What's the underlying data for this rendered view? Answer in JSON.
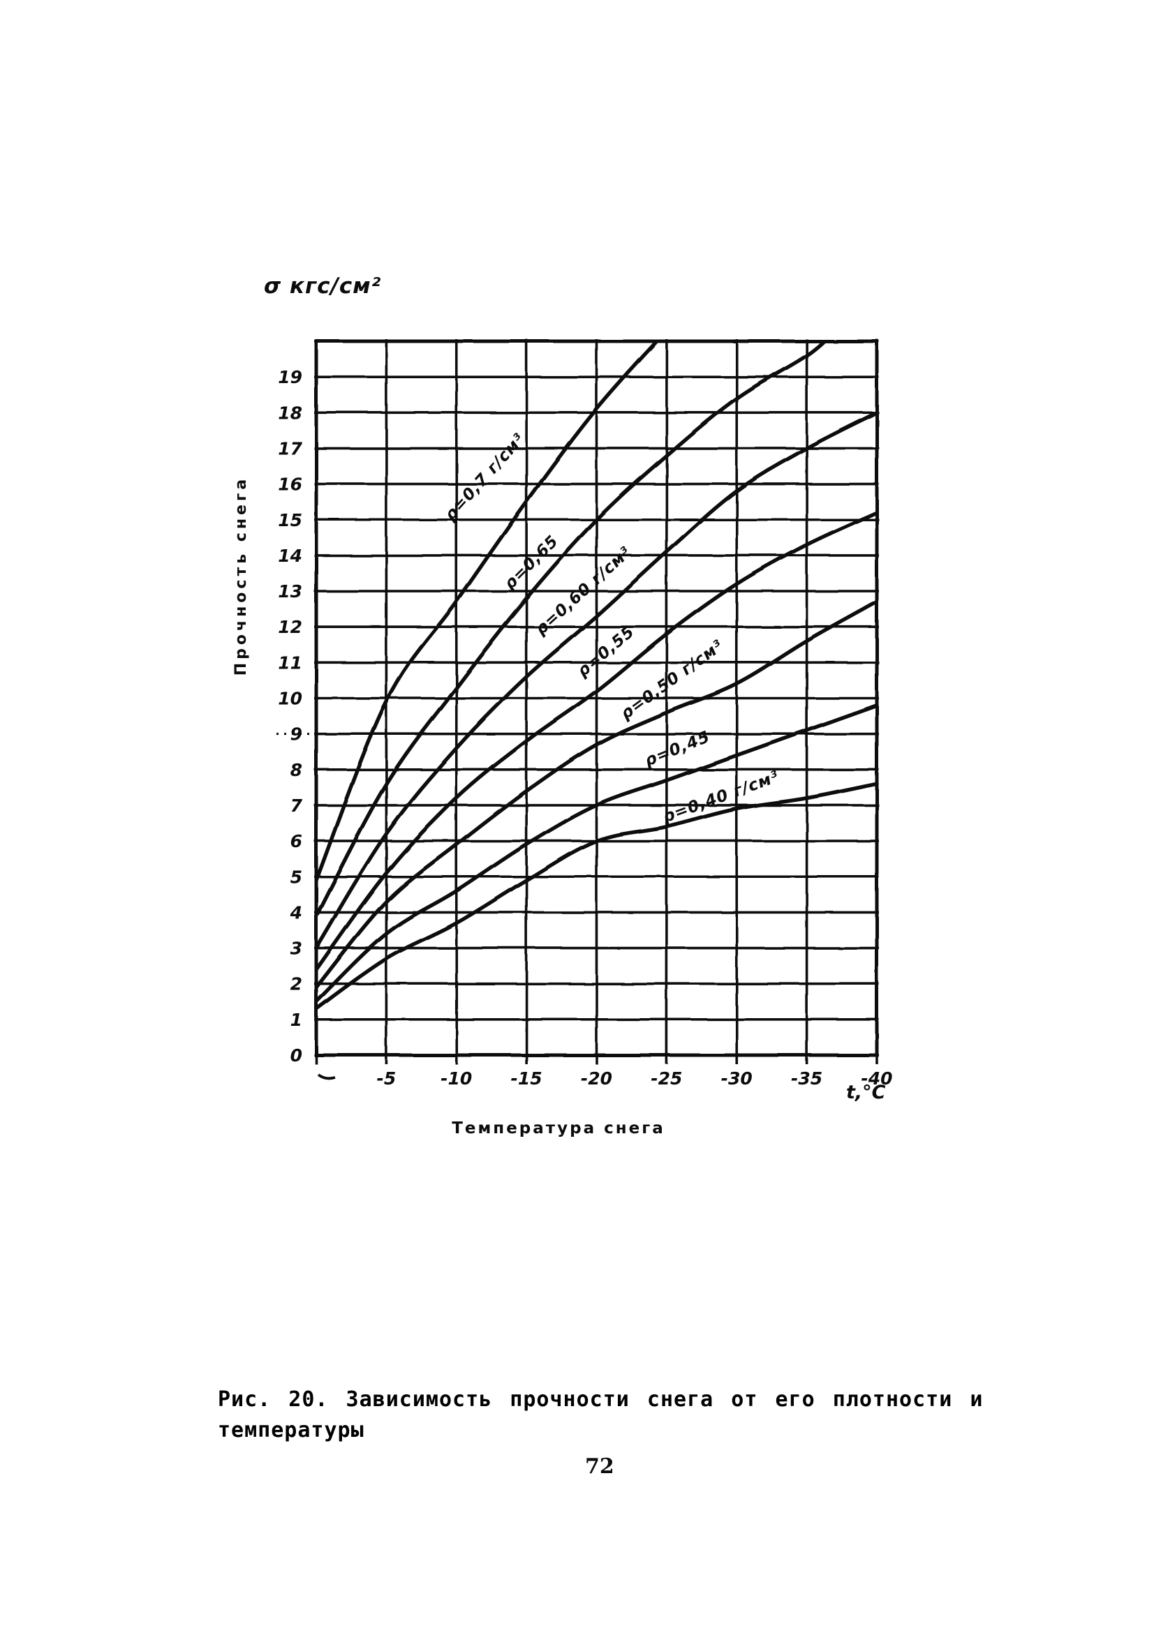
{
  "page": {
    "number": "72",
    "ink_color": "#0c0c0c",
    "paper_color": "#ffffff"
  },
  "figure": {
    "caption_line1": "Рис. 20. Зависимость прочности снега от его плотности и",
    "caption_line2": "температуры"
  },
  "chart_data": {
    "type": "line",
    "title": "Рис. 20. Зависимость прочности снега от его плотности и температуры",
    "ylabel": "Прочность снега",
    "y_unit_label": "σ кгс/см²",
    "xlabel": "Температура снега",
    "x_unit_label": "t,°C",
    "xlim": [
      0,
      -40
    ],
    "ylim": [
      0,
      20
    ],
    "grid": true,
    "legend_position": "inline-curve-labels",
    "x_tick_step": 5,
    "x_tick_labels": [
      "-5",
      "-10",
      "-15",
      "-20",
      "-25",
      "-30",
      "-35",
      "-40"
    ],
    "x_origin_mark": "~",
    "y_tick_labels": [
      "0",
      "1",
      "2",
      "3",
      "4",
      "5",
      "6",
      "7",
      "8",
      "9",
      "10",
      "11",
      "12",
      "13",
      "14",
      "15",
      "16",
      "17",
      "18",
      "19"
    ],
    "series": [
      {
        "name": "ρ=0,7 г/см³",
        "density_g_cm3": 0.7,
        "points": [
          [
            0,
            4.9
          ],
          [
            -5,
            9.9
          ],
          [
            -10,
            12.7
          ],
          [
            -15,
            15.5
          ],
          [
            -20,
            18.1
          ],
          [
            -25,
            20.3
          ]
        ],
        "label": {
          "t": -12.3,
          "sigma": 16.1,
          "rotation": -48
        }
      },
      {
        "name": "ρ=0,65",
        "density_g_cm3": 0.65,
        "points": [
          [
            0,
            3.9
          ],
          [
            -5,
            7.6
          ],
          [
            -10,
            10.3
          ],
          [
            -15,
            12.8
          ],
          [
            -20,
            15.0
          ],
          [
            -25,
            16.8
          ],
          [
            -30,
            18.4
          ],
          [
            -35,
            19.6
          ],
          [
            -37,
            20.3
          ]
        ],
        "label": {
          "t": -15.6,
          "sigma": 13.7,
          "rotation": -45
        }
      },
      {
        "name": "ρ=0,60 г/см³",
        "density_g_cm3": 0.6,
        "points": [
          [
            0,
            3.0
          ],
          [
            -5,
            6.2
          ],
          [
            -10,
            8.6
          ],
          [
            -15,
            10.6
          ],
          [
            -20,
            12.3
          ],
          [
            -25,
            14.1
          ],
          [
            -30,
            15.8
          ],
          [
            -35,
            17.0
          ],
          [
            -40,
            18.0
          ]
        ],
        "label": {
          "t": -19.3,
          "sigma": 12.9,
          "rotation": -42
        }
      },
      {
        "name": "ρ=0,55",
        "density_g_cm3": 0.55,
        "points": [
          [
            0,
            2.4
          ],
          [
            -5,
            5.1
          ],
          [
            -10,
            7.2
          ],
          [
            -15,
            8.8
          ],
          [
            -20,
            10.2
          ],
          [
            -25,
            11.8
          ],
          [
            -30,
            13.2
          ],
          [
            -35,
            14.3
          ],
          [
            -40,
            15.2
          ]
        ],
        "label": {
          "t": -20.9,
          "sigma": 11.2,
          "rotation": -40
        }
      },
      {
        "name": "ρ=0,50 г/см³",
        "density_g_cm3": 0.5,
        "points": [
          [
            0,
            1.9
          ],
          [
            -5,
            4.3
          ],
          [
            -10,
            5.9
          ],
          [
            -15,
            7.4
          ],
          [
            -20,
            8.7
          ],
          [
            -25,
            9.6
          ],
          [
            -30,
            10.4
          ],
          [
            -35,
            11.6
          ],
          [
            -40,
            12.7
          ]
        ],
        "label": {
          "t": -25.6,
          "sigma": 10.4,
          "rotation": -36
        }
      },
      {
        "name": "ρ=0,45",
        "density_g_cm3": 0.45,
        "points": [
          [
            0,
            1.5
          ],
          [
            -5,
            3.4
          ],
          [
            -10,
            4.6
          ],
          [
            -15,
            5.9
          ],
          [
            -20,
            7.0
          ],
          [
            -25,
            7.7
          ],
          [
            -30,
            8.4
          ],
          [
            -35,
            9.1
          ],
          [
            -40,
            9.8
          ]
        ],
        "label": {
          "t": -25.9,
          "sigma": 8.45,
          "rotation": -22
        }
      },
      {
        "name": "ρ=0,40 г/см³",
        "density_g_cm3": 0.4,
        "points": [
          [
            0,
            1.3
          ],
          [
            -5,
            2.7
          ],
          [
            -10,
            3.7
          ],
          [
            -15,
            4.9
          ],
          [
            -20,
            6.0
          ],
          [
            -25,
            6.4
          ],
          [
            -30,
            6.9
          ],
          [
            -35,
            7.2
          ],
          [
            -40,
            7.6
          ]
        ],
        "label": {
          "t": -29.0,
          "sigma": 7.1,
          "rotation": -20
        }
      }
    ]
  }
}
